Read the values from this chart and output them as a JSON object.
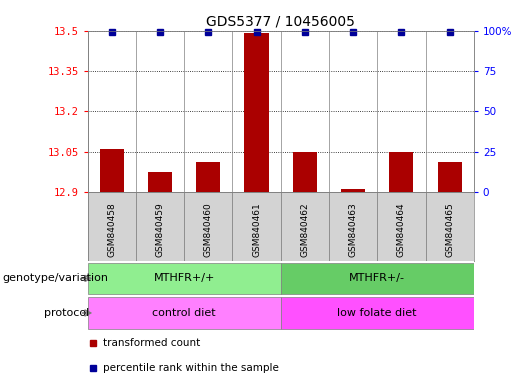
{
  "title": "GDS5377 / 10456005",
  "samples": [
    "GSM840458",
    "GSM840459",
    "GSM840460",
    "GSM840461",
    "GSM840462",
    "GSM840463",
    "GSM840464",
    "GSM840465"
  ],
  "bar_values": [
    13.06,
    12.975,
    13.01,
    13.49,
    13.05,
    12.912,
    13.05,
    13.01
  ],
  "ylim": [
    12.9,
    13.5
  ],
  "yticks": [
    12.9,
    13.05,
    13.2,
    13.35,
    13.5
  ],
  "right_yticks": [
    0,
    25,
    50,
    75,
    100
  ],
  "right_ylim": [
    0,
    100
  ],
  "genotype_labels": [
    "MTHFR+/+",
    "MTHFR+/-"
  ],
  "genotype_colors": [
    "#90EE90",
    "#66CC66"
  ],
  "protocol_labels": [
    "control diet",
    "low folate diet"
  ],
  "protocol_color": "#FF80FF",
  "bar_color": "#AA0000",
  "dot_color": "#000099",
  "background_color": "#FFFFFF",
  "title_fontsize": 10,
  "tick_fontsize": 7.5,
  "sample_fontsize": 6.5,
  "label_fontsize": 8,
  "annotation_fontsize": 7.5
}
